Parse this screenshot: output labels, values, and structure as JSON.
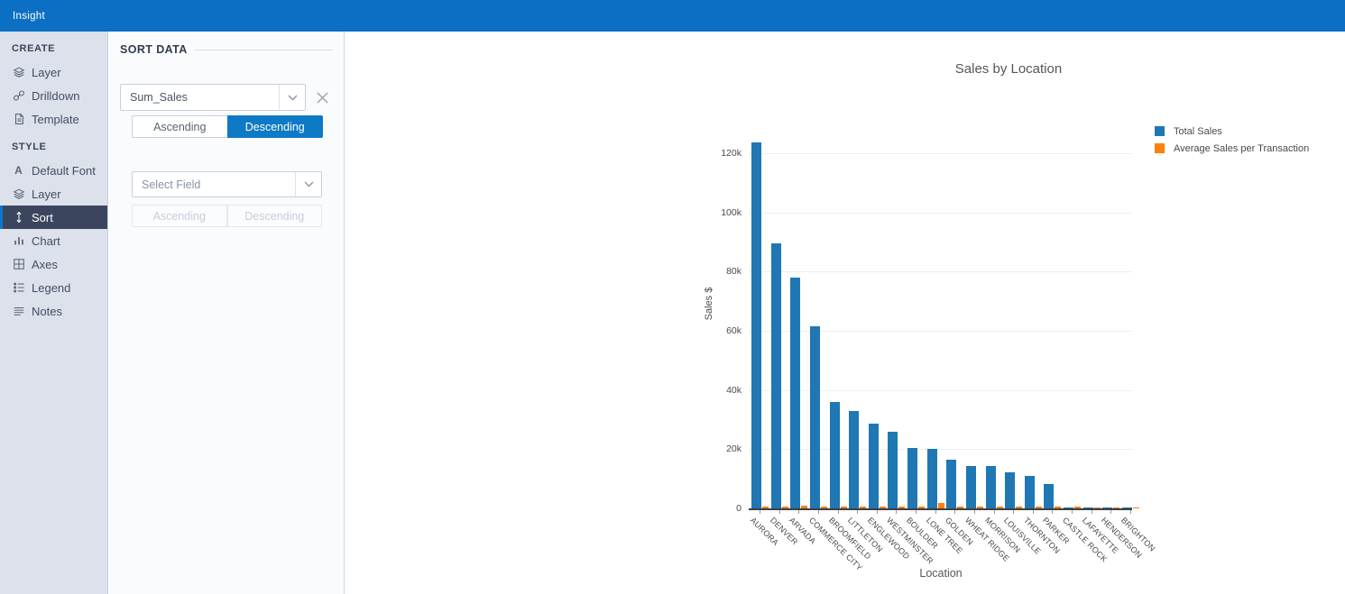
{
  "app": {
    "title": "Insight"
  },
  "colors": {
    "topbar": "#0b6fc3",
    "accent_blue": "#0e7ac6",
    "sidebar_bg": "#dce1ec",
    "sidebar_selected_bg": "#3b465e",
    "series_blue": "#1f77b4",
    "series_orange": "#ff7f0e"
  },
  "sidebar": {
    "sections": [
      {
        "header": "CREATE",
        "items": [
          {
            "label": "Layer",
            "icon": "layers",
            "selected": false
          },
          {
            "label": "Drilldown",
            "icon": "drilldown-link",
            "selected": false
          },
          {
            "label": "Template",
            "icon": "template-document",
            "selected": false
          }
        ]
      },
      {
        "header": "STYLE",
        "items": [
          {
            "label": "Default Font",
            "icon": "font",
            "selected": false
          },
          {
            "label": "Layer",
            "icon": "layers",
            "selected": false
          },
          {
            "label": "Sort",
            "icon": "sort-arrows",
            "selected": true
          },
          {
            "label": "Chart",
            "icon": "bar-chart",
            "selected": false
          },
          {
            "label": "Axes",
            "icon": "axes-grid",
            "selected": false
          },
          {
            "label": "Legend",
            "icon": "legend-list",
            "selected": false
          },
          {
            "label": "Notes",
            "icon": "notes-lines",
            "selected": false
          }
        ]
      }
    ]
  },
  "panel": {
    "heading": "SORT DATA",
    "sort_groups": [
      {
        "field_value": "Sum_Sales",
        "is_placeholder": false,
        "ascending_label": "Ascending",
        "descending_label": "Descending",
        "active": "descending",
        "enabled": true,
        "removable": true
      },
      {
        "field_value": "Select Field",
        "is_placeholder": true,
        "ascending_label": "Ascending",
        "descending_label": "Descending",
        "active": null,
        "enabled": false,
        "removable": false
      }
    ]
  },
  "chart_data": {
    "type": "bar",
    "title": "Sales by Location",
    "xlabel": "Location",
    "ylabel": "Sales $",
    "grid": true,
    "legend_position": "top-right",
    "ylim": [
      0,
      126000
    ],
    "yticks": [
      0,
      20000,
      40000,
      60000,
      80000,
      100000,
      120000
    ],
    "ytick_labels": [
      "0",
      "20k",
      "40k",
      "60k",
      "80k",
      "100k",
      "120k"
    ],
    "categories": [
      "AURORA",
      "DENVER",
      "ARVADA",
      "COMMERCE CITY",
      "BROOMFIELD",
      "LITTLETON",
      "ENGLEWOOD",
      "WESTMINSTER",
      "BOULDER",
      "LONE TREE",
      "GOLDEN",
      "WHEAT RIDGE",
      "MORRISON",
      "LOUISVILLE",
      "THORNTON",
      "PARKER",
      "CASTLE ROCK",
      "LAFAYETTE",
      "HENDERSON",
      "BRIGHTON"
    ],
    "series": [
      {
        "name": "Total Sales",
        "color": "#1f77b4",
        "values": [
          123800,
          89500,
          78000,
          61500,
          36000,
          33000,
          28500,
          26000,
          20400,
          20000,
          16400,
          14400,
          14200,
          12300,
          11000,
          8200,
          350,
          300,
          250,
          200
        ]
      },
      {
        "name": "Average Sales per Transaction",
        "color": "#ff7f0e",
        "values": [
          700,
          650,
          800,
          700,
          600,
          700,
          700,
          650,
          700,
          1900,
          700,
          650,
          700,
          600,
          650,
          600,
          500,
          450,
          400,
          350
        ]
      }
    ]
  }
}
